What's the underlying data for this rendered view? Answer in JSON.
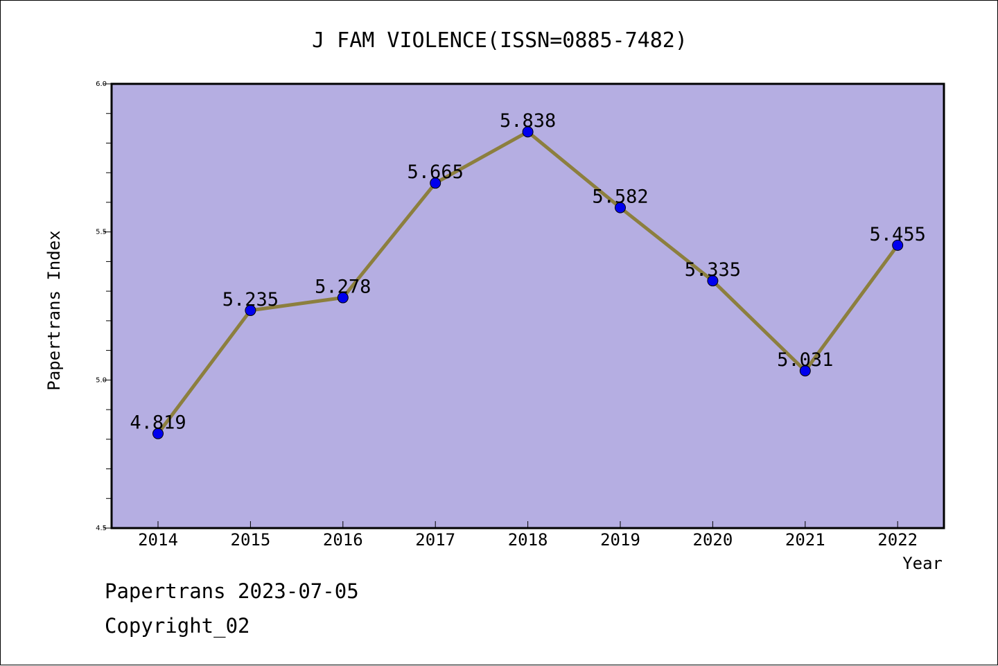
{
  "chart_data": {
    "type": "line",
    "title": "J FAM VIOLENCE(ISSN=0885-7482)",
    "xlabel": "Year",
    "ylabel": "Papertrans Index",
    "categories": [
      "2014",
      "2015",
      "2016",
      "2017",
      "2018",
      "2019",
      "2020",
      "2021",
      "2022"
    ],
    "series": [
      {
        "values": [
          4.819,
          5.235,
          5.278,
          5.665,
          5.838,
          5.582,
          5.335,
          5.031,
          5.455
        ],
        "labels": [
          "4.819",
          "5.235",
          "5.278",
          "5.665",
          "5.838",
          "5.582",
          "5.335",
          "5.031",
          "5.455"
        ]
      }
    ],
    "ylim": [
      4.5,
      6.0
    ],
    "yticks": [
      "4.5",
      "5.0",
      "5.5",
      "6.0"
    ],
    "grid": false,
    "colors": {
      "plot_background": "#b5aee2",
      "line": "#8c7f3e",
      "marker": "#0000ee"
    }
  },
  "footer": {
    "line1": "Papertrans 2023-07-05",
    "line2": "Copyright_02"
  }
}
